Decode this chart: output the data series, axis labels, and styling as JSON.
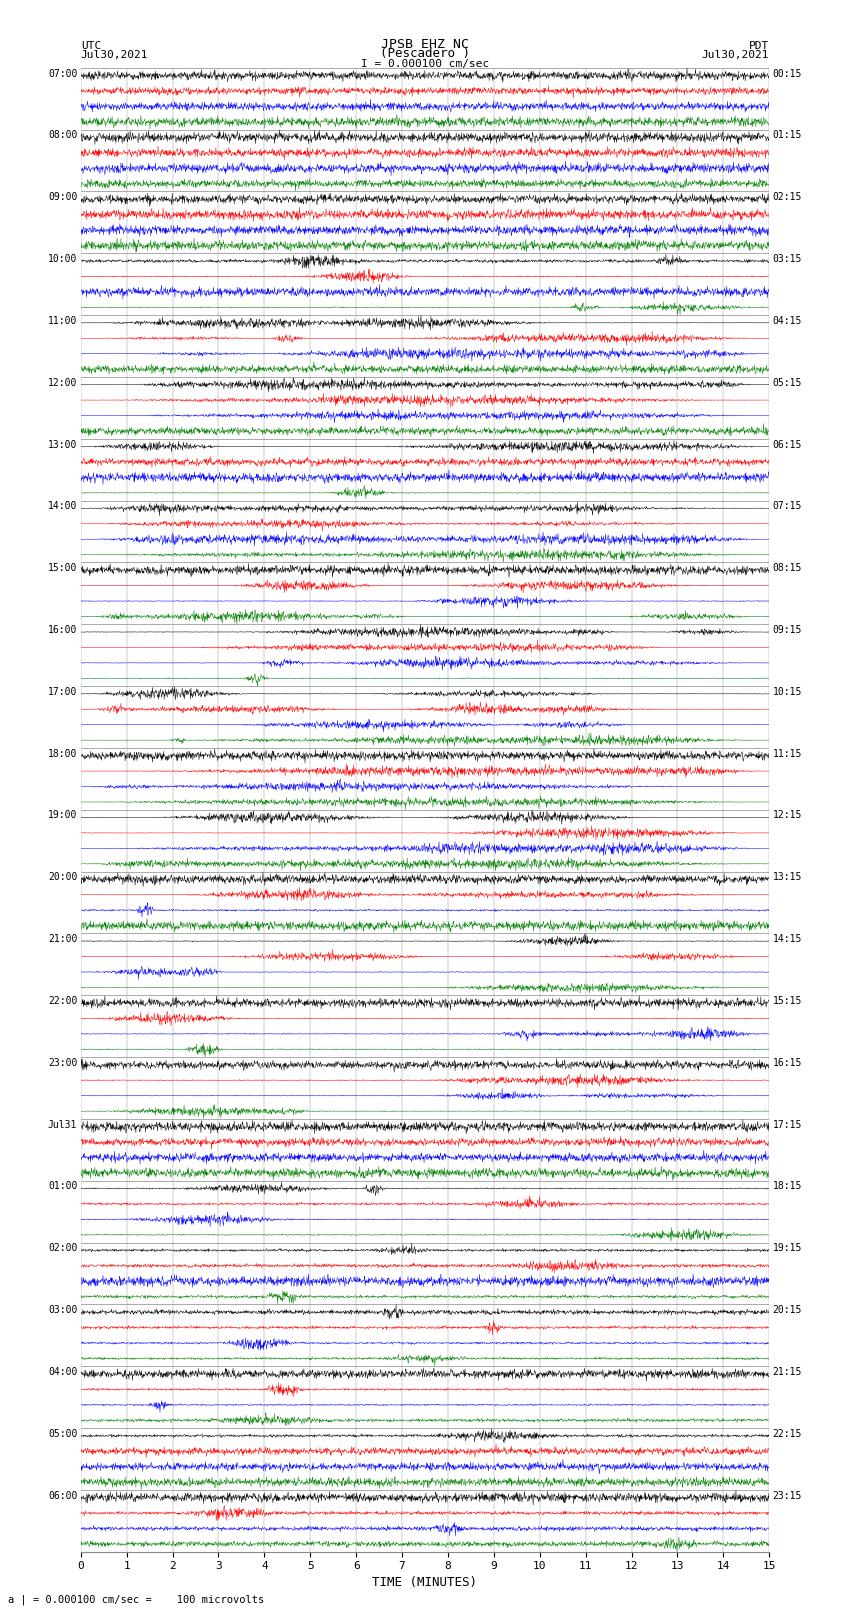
{
  "title_line1": "JPSB EHZ NC",
  "title_line2": "(Pescadero )",
  "scale_label": "I = 0.000100 cm/sec",
  "bottom_label": "a | = 0.000100 cm/sec =    100 microvolts",
  "xlabel": "TIME (MINUTES)",
  "left_label_top": "UTC",
  "left_label_date": "Jul30,2021",
  "right_label_top": "PDT",
  "right_label_date": "Jul30,2021",
  "utc_times": [
    "07:00",
    "08:00",
    "09:00",
    "10:00",
    "11:00",
    "12:00",
    "13:00",
    "14:00",
    "15:00",
    "16:00",
    "17:00",
    "18:00",
    "19:00",
    "20:00",
    "21:00",
    "22:00",
    "23:00",
    "Jul31",
    "01:00",
    "02:00",
    "03:00",
    "04:00",
    "05:00",
    "06:00"
  ],
  "pdt_times": [
    "00:15",
    "01:15",
    "02:15",
    "03:15",
    "04:15",
    "05:15",
    "06:15",
    "07:15",
    "08:15",
    "09:15",
    "10:15",
    "11:15",
    "12:15",
    "13:15",
    "14:15",
    "15:15",
    "16:15",
    "17:15",
    "18:15",
    "19:15",
    "20:15",
    "21:15",
    "22:15",
    "23:15"
  ],
  "n_groups": 24,
  "traces_per_group": 4,
  "colors": [
    "black",
    "red",
    "blue",
    "green"
  ],
  "bg_color": "white",
  "grid_color": "#888888",
  "xmin": 0,
  "xmax": 15,
  "xticks": [
    0,
    1,
    2,
    3,
    4,
    5,
    6,
    7,
    8,
    9,
    10,
    11,
    12,
    13,
    14,
    15
  ],
  "activity_profile": [
    0.8,
    0.7,
    0.8,
    1.5,
    4.0,
    5.0,
    3.5,
    4.5,
    2.5,
    3.0,
    4.0,
    5.5,
    4.0,
    3.5,
    2.5,
    2.0,
    2.0,
    1.5,
    1.5,
    1.2,
    1.0,
    1.0,
    1.2,
    1.0
  ]
}
